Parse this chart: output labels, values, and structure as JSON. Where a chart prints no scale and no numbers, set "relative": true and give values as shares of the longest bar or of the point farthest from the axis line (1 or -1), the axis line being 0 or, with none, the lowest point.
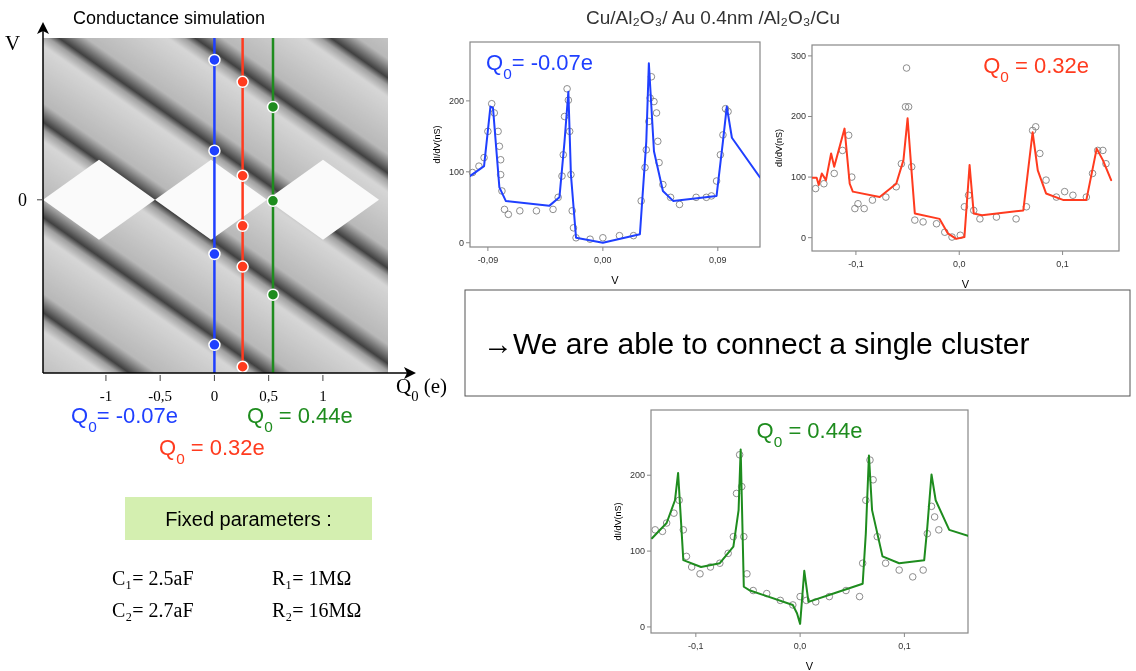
{
  "chart_data": [
    {
      "type": "scatter",
      "title": "Conductance simulation",
      "xlabel": "Q$_{0}$ (e)",
      "ylabel": "V",
      "relative": true,
      "xlim": [
        -1.58,
        1.6
      ],
      "xticks": [
        -1,
        {
          "value": -0.5,
          "label": "-0,5"
        },
        0,
        {
          "value": 0.5,
          "label": "0,5"
        },
        1
      ],
      "annotations": [
        "0"
      ],
      "legend": "bottom",
      "ref_lines": [
        {
          "axis": "x",
          "value": 0,
          "color": "#1f3fff"
        },
        {
          "axis": "x",
          "value": 0.26,
          "color": "#ff3b1f"
        },
        {
          "axis": "x",
          "value": 0.54,
          "color": "#1e8c1e"
        }
      ],
      "series": [
        {
          "name": "Q$_{0}$= -0.07e",
          "color": "#1f3fff",
          "x": [
            0,
            0,
            0,
            0
          ],
          "values": [
            1,
            0.71,
            0.38,
            0.09
          ]
        },
        {
          "name": "Q$_{0}$ =  0.32e",
          "color": "#ff3b1f",
          "x": [
            0.26,
            0.26,
            0.26,
            0.26,
            0.26
          ],
          "values": [
            0.93,
            0.63,
            0.47,
            0.34,
            0.02
          ]
        },
        {
          "name": "Q$_{0}$ =  0.44e",
          "color": "#1e8c1e",
          "x": [
            0.54,
            0.54,
            0.54
          ],
          "values": [
            0.85,
            0.55,
            0.25
          ]
        }
      ]
    },
    {
      "type": "other",
      "title": "Cu/Al₂O₃/ Au 0.4nm /Al₂O₃/Cu"
    },
    {
      "type": "line",
      "xlabel": "V",
      "ylabel": "dI/dV(nS)",
      "xlim": [
        -0.104,
        0.123
      ],
      "ylim": [
        -6,
        283
      ],
      "xticks": [
        {
          "value": -0.09,
          "label": "-0,09"
        },
        {
          "value": 0,
          "label": "0,00"
        },
        {
          "value": 0.09,
          "label": "0,09"
        }
      ],
      "yticks": [
        0,
        100,
        200
      ],
      "legend": "top left",
      "series": [
        {
          "type": "scatter",
          "marker": "circle",
          "color": "#808080",
          "x": [
            -0.102,
            -0.097,
            -0.093,
            -0.09,
            -0.087,
            -0.085,
            -0.082,
            -0.081,
            -0.08,
            -0.08,
            -0.079,
            -0.077,
            -0.074,
            -0.065,
            -0.052,
            -0.039,
            -0.035,
            -0.032,
            -0.031,
            -0.03,
            -0.028,
            -0.027,
            -0.026,
            -0.025,
            -0.024,
            -0.023,
            -0.021,
            -0.01,
            0,
            0.013,
            0.024,
            0.03,
            0.033,
            0.034,
            0.036,
            0.037,
            0.038,
            0.04,
            0.042,
            0.043,
            0.044,
            0.047,
            0.053,
            0.06,
            0.073,
            0.081,
            0.085,
            0.089,
            0.092,
            0.094,
            0.096,
            0.098
          ],
          "values": [
            99,
            108,
            120,
            157,
            196,
            183,
            157,
            136,
            117,
            96,
            73,
            47,
            40,
            45,
            45,
            47,
            64,
            94,
            124,
            178,
            217,
            201,
            157,
            96,
            45,
            21,
            7,
            5,
            7,
            10,
            10,
            59,
            106,
            131,
            171,
            204,
            234,
            199,
            183,
            143,
            113,
            82,
            64,
            54,
            64,
            64,
            66,
            87,
            124,
            152,
            189,
            185
          ]
        },
        {
          "type": "line",
          "name": "Q$_{0}$= -0.07e",
          "color": "#1f3fff",
          "x": [
            -0.104,
            -0.093,
            -0.088,
            -0.086,
            -0.081,
            -0.076,
            -0.042,
            -0.034,
            -0.03,
            -0.027,
            -0.025,
            -0.021,
            0,
            0.029,
            0.034,
            0.036,
            0.04,
            0.047,
            0.055,
            0.089,
            0.094,
            0.097,
            0.101,
            0.123
          ],
          "values": [
            94,
            108,
            192,
            190,
            78,
            59,
            52,
            64,
            143,
            213,
            96,
            7,
            0,
            12,
            143,
            253,
            129,
            73,
            59,
            66,
            143,
            192,
            148,
            92
          ]
        }
      ]
    },
    {
      "type": "line",
      "xlabel": "V",
      "ylabel": "dI/dV(nS)",
      "xlim": [
        -0.1425,
        0.1546
      ],
      "ylim": [
        -22,
        318
      ],
      "xticks": [
        {
          "value": -0.1,
          "label": "-0,1"
        },
        {
          "value": 0,
          "label": "0,0"
        },
        {
          "value": 0.1,
          "label": "0,1"
        }
      ],
      "yticks": [
        0,
        100,
        200,
        300
      ],
      "legend": "top right",
      "series": [
        {
          "type": "scatter",
          "marker": "circle",
          "color": "#808080",
          "x": [
            -0.139,
            -0.131,
            -0.121,
            -0.113,
            -0.107,
            -0.104,
            -0.101,
            -0.098,
            -0.092,
            -0.084,
            -0.071,
            -0.061,
            -0.056,
            -0.052,
            -0.051,
            -0.049,
            -0.046,
            -0.043,
            -0.035,
            -0.022,
            -0.014,
            -0.007,
            0.001,
            0.005,
            0.009,
            0.014,
            0.02,
            0.036,
            0.055,
            0.065,
            0.071,
            0.074,
            0.078,
            0.084,
            0.094,
            0.102,
            0.11,
            0.123,
            0.129,
            0.134,
            0.139,
            0.142
          ],
          "values": [
            81,
            89,
            106,
            144,
            169,
            100,
            48,
            56,
            48,
            62,
            67,
            84,
            122,
            216,
            280,
            216,
            117,
            29,
            26,
            23,
            9,
            1,
            4,
            51,
            70,
            45,
            31,
            34,
            31,
            51,
            177,
            183,
            139,
            95,
            67,
            76,
            70,
            67,
            106,
            144,
            144,
            122
          ]
        },
        {
          "type": "line",
          "name": "Q$_{0}$ =  0.32e",
          "color": "#ff3b1f",
          "x": [
            -0.142,
            -0.138,
            -0.136,
            -0.133,
            -0.129,
            -0.124,
            -0.121,
            -0.111,
            -0.106,
            -0.103,
            -0.077,
            -0.061,
            -0.054,
            -0.05,
            -0.046,
            -0.043,
            -0.019,
            -0.011,
            -0.003,
            0.005,
            0.01,
            0.014,
            0.022,
            0.062,
            0.071,
            0.076,
            0.084,
            0.101,
            0.123,
            0.133,
            0.139,
            0.147
          ],
          "values": [
            99,
            99,
            87,
            106,
            95,
            139,
            117,
            180,
            89,
            76,
            67,
            89,
            128,
            197,
            106,
            40,
            31,
            7,
            -2,
            1,
            120,
            40,
            37,
            45,
            174,
            111,
            73,
            62,
            62,
            147,
            128,
            95
          ]
        }
      ]
    },
    {
      "type": "other",
      "annotations": [
        "→We are able to connect a single cluster"
      ]
    },
    {
      "type": "line",
      "xlabel": "V",
      "ylabel": "dI/dV(nS)",
      "xlim": [
        -0.143,
        0.161
      ],
      "ylim": [
        -8,
        286
      ],
      "xticks": [
        {
          "value": -0.1,
          "label": "-0,1"
        },
        {
          "value": 0,
          "label": "0,0"
        },
        {
          "value": 0.1,
          "label": "0,1"
        }
      ],
      "yticks": [
        0,
        100,
        200
      ],
      "legend": "top",
      "series": [
        {
          "type": "scatter",
          "marker": "circle",
          "color": "#808080",
          "x": [
            -0.139,
            -0.132,
            -0.128,
            -0.121,
            -0.116,
            -0.112,
            -0.109,
            -0.104,
            -0.096,
            -0.086,
            -0.077,
            -0.069,
            -0.064,
            -0.061,
            -0.058,
            -0.056,
            -0.054,
            -0.051,
            -0.045,
            -0.032,
            -0.019,
            -0.007,
            0,
            0.006,
            0.015,
            0.028,
            0.044,
            0.057,
            0.06,
            0.063,
            0.067,
            0.07,
            0.074,
            0.082,
            0.095,
            0.108,
            0.118,
            0.122,
            0.126,
            0.129,
            0.133
          ],
          "values": [
            128,
            126,
            137,
            150,
            167,
            128,
            93,
            79,
            70,
            79,
            84,
            97,
            119,
            176,
            227,
            185,
            119,
            70,
            48,
            44,
            35,
            29,
            40,
            35,
            33,
            40,
            48,
            40,
            84,
            167,
            220,
            194,
            119,
            84,
            75,
            66,
            75,
            123,
            159,
            145,
            128
          ]
        },
        {
          "type": "line",
          "name": "Q$_{0}$ =  0.44e",
          "color": "#1e8c1e",
          "x": [
            -0.142,
            -0.128,
            -0.12,
            -0.117,
            -0.112,
            -0.095,
            -0.077,
            -0.064,
            -0.059,
            -0.057,
            -0.054,
            -0.048,
            -0.007,
            -0.003,
            0,
            0.004,
            0.008,
            0.032,
            0.06,
            0.063,
            0.066,
            0.069,
            0.079,
            0.095,
            0.119,
            0.122,
            0.126,
            0.13,
            0.143,
            0.161
          ],
          "values": [
            117,
            137,
            167,
            203,
            88,
            79,
            84,
            106,
            154,
            234,
            53,
            48,
            29,
            18,
            4,
            74,
            33,
            44,
            57,
            123,
            226,
            154,
            93,
            84,
            88,
            132,
            201,
            167,
            128,
            120
          ]
        }
      ]
    },
    {
      "type": "other",
      "title": "Fixed parameters :",
      "annotations": [
        "C₁= 2.5aF",
        "R₁= 1MΩ",
        "C₂= 2.7aF",
        "R₂= 16MΩ"
      ]
    }
  ]
}
